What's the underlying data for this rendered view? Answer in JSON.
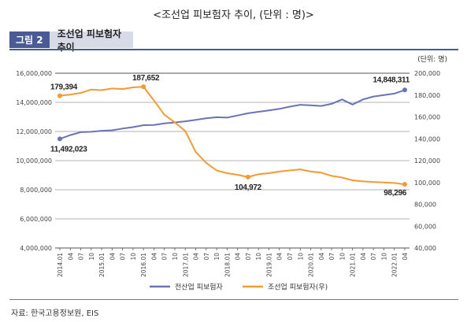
{
  "page_title": "<조선업 피보험자 추이, (단위 : 명)>",
  "figure": {
    "number_label": "그림 2",
    "title": "조선업 피보험자 추이"
  },
  "source": "자료: 한국고용정보원, EIS",
  "chart_data": {
    "type": "line",
    "unit_label": "(단위: 명)",
    "x_tick_labels": [
      "2014.01",
      "04",
      "07",
      "10",
      "2015.01",
      "04",
      "07",
      "10",
      "2016.01",
      "04",
      "07",
      "10",
      "2017.01",
      "04",
      "07",
      "10",
      "2018.01",
      "04",
      "07",
      "10",
      "2019.01",
      "04",
      "07",
      "10",
      "2020.01",
      "04",
      "07",
      "10",
      "2021.01",
      "04",
      "07",
      "10",
      "2022.01",
      "04"
    ],
    "left_axis": {
      "ylim": [
        4000000,
        16000000
      ],
      "ticks": [
        4000000,
        6000000,
        8000000,
        10000000,
        12000000,
        14000000,
        16000000
      ],
      "tick_labels": [
        "4,000,000",
        "6,000,000",
        "8,000,000",
        "10,000,000",
        "12,000,000",
        "14,000,000",
        "16,000,000"
      ]
    },
    "right_axis": {
      "ylim": [
        40000,
        200000
      ],
      "ticks": [
        40000,
        60000,
        80000,
        100000,
        120000,
        140000,
        160000,
        180000,
        200000
      ],
      "tick_labels": [
        "40,000",
        "60,000",
        "80,000",
        "100,000",
        "120,000",
        "140,000",
        "160,000",
        "180,000",
        "200,000"
      ]
    },
    "series": [
      {
        "name": "전산업 피보험자",
        "axis": "left",
        "color": "#6a74b4",
        "values": [
          11492023,
          11750000,
          11950000,
          11980000,
          12050000,
          12080000,
          12200000,
          12300000,
          12430000,
          12450000,
          12550000,
          12620000,
          12700000,
          12800000,
          12900000,
          12980000,
          12950000,
          13100000,
          13250000,
          13350000,
          13450000,
          13550000,
          13700000,
          13830000,
          13800000,
          13750000,
          13900000,
          14200000,
          13850000,
          14200000,
          14400000,
          14500000,
          14600000,
          14848311
        ]
      },
      {
        "name": "조선업 피보험자(우)",
        "axis": "right",
        "color": "#f39a32",
        "values": [
          179394,
          180500,
          182000,
          185000,
          184500,
          186000,
          185500,
          187000,
          187652,
          175000,
          162000,
          155000,
          147000,
          128000,
          118000,
          111000,
          108500,
          107000,
          104972,
          107500,
          108500,
          110000,
          111000,
          112000,
          110000,
          109000,
          106000,
          104500,
          102000,
          101000,
          100500,
          100000,
          99500,
          98296
        ]
      }
    ],
    "annotations": [
      {
        "text": "179,394",
        "series": 1,
        "index": 0
      },
      {
        "text": "187,652",
        "series": 1,
        "index": 8
      },
      {
        "text": "11,492,023",
        "series": 0,
        "index": 0
      },
      {
        "text": "14,848,311",
        "series": 0,
        "index": 33
      },
      {
        "text": "104,972",
        "series": 1,
        "index": 18
      },
      {
        "text": "98,296",
        "series": 1,
        "index": 33
      }
    ],
    "legend": {
      "placement": "bottom-center"
    },
    "grid": true
  }
}
